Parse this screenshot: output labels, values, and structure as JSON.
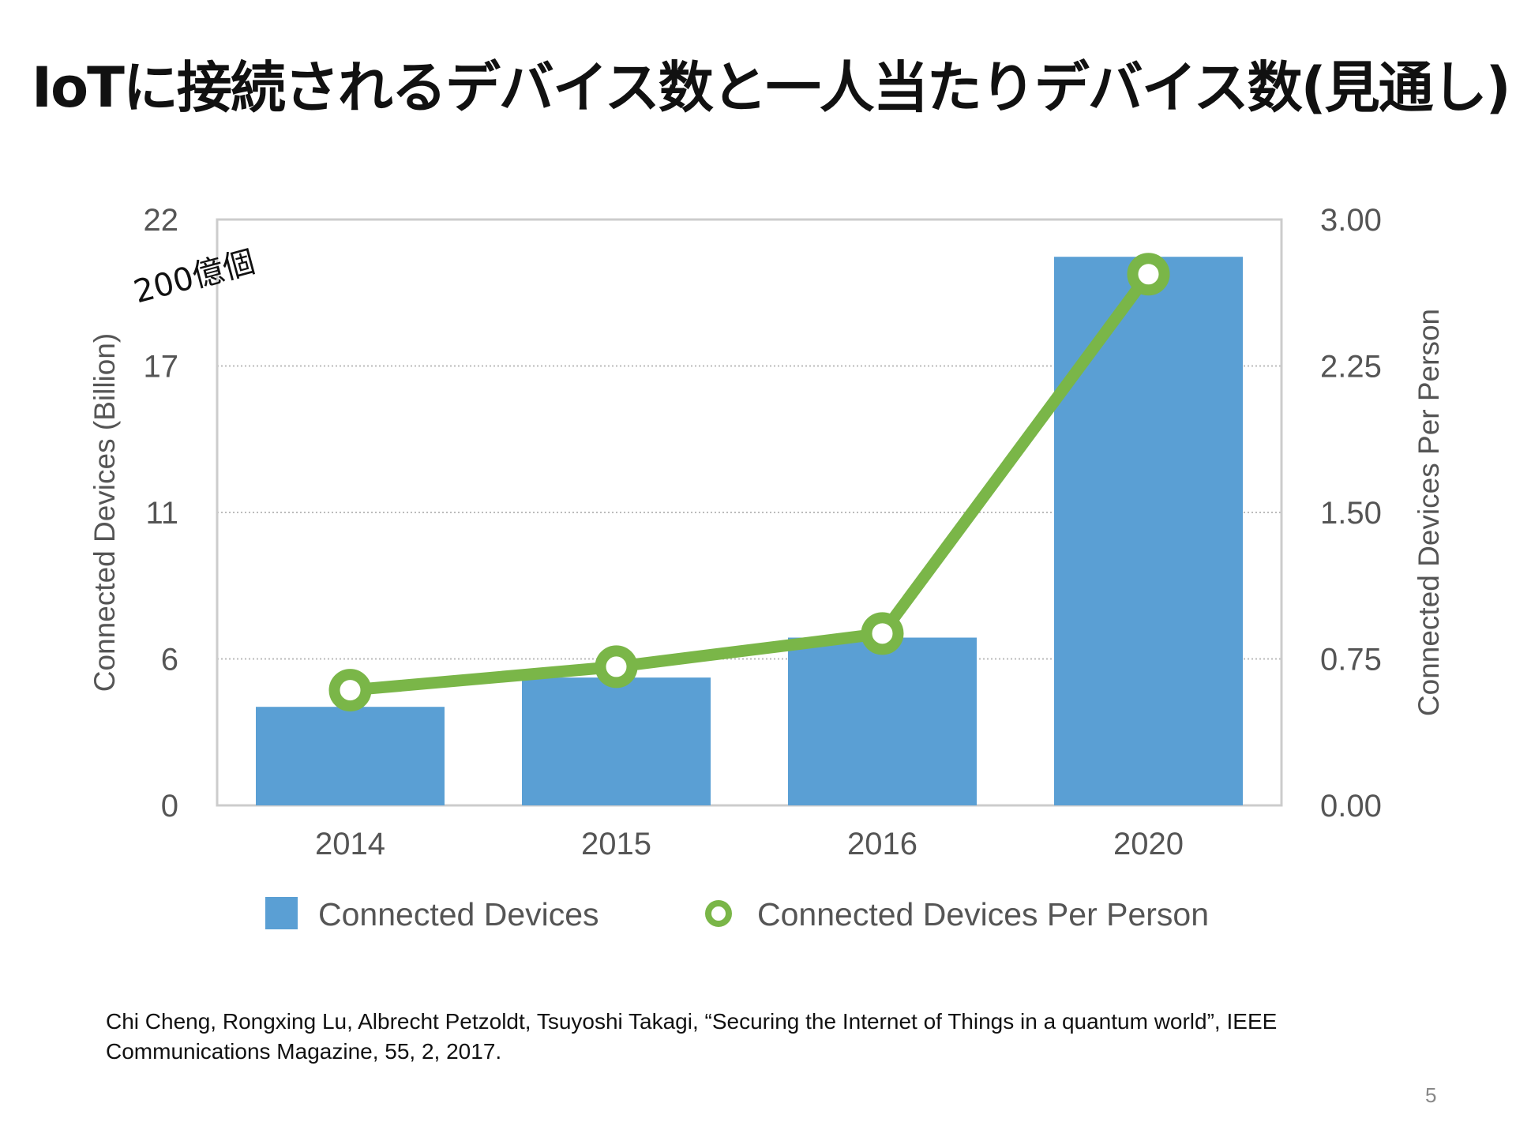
{
  "slide": {
    "title": "IoTに接続されるデバイス数と一人当たりデバイス数(見通し)",
    "annotation": "200億個",
    "citation": "Chi Cheng, Rongxing Lu, Albrecht Petzoldt, Tsuyoshi Takagi, “Securing the Internet of Things in a quantum world”, IEEE Communications Magazine, 55, 2, 2017.",
    "page_number": "5"
  },
  "chart_data": {
    "type": "bar+line",
    "categories": [
      "2014",
      "2015",
      "2016",
      "2020"
    ],
    "series": [
      {
        "name": "Connected Devices",
        "type": "bar",
        "axis": "left",
        "color": "#5a9fd4",
        "values": [
          3.7,
          4.8,
          6.3,
          20.6
        ]
      },
      {
        "name": "Connected Devices Per Person",
        "type": "line",
        "axis": "right",
        "color": "#7ab648",
        "values": [
          0.59,
          0.71,
          0.88,
          2.72
        ]
      }
    ],
    "ylabel": "Connected Devices (Billion)",
    "y2label": "Connected Devices Per Person",
    "ylim": [
      0,
      22
    ],
    "y2lim": [
      0,
      3
    ],
    "yticks": [
      "0",
      "6",
      "11",
      "17",
      "22"
    ],
    "y2ticks": [
      "0.00",
      "0.75",
      "1.50",
      "2.25",
      "3.00"
    ],
    "grid": true,
    "legend": "bottom"
  }
}
